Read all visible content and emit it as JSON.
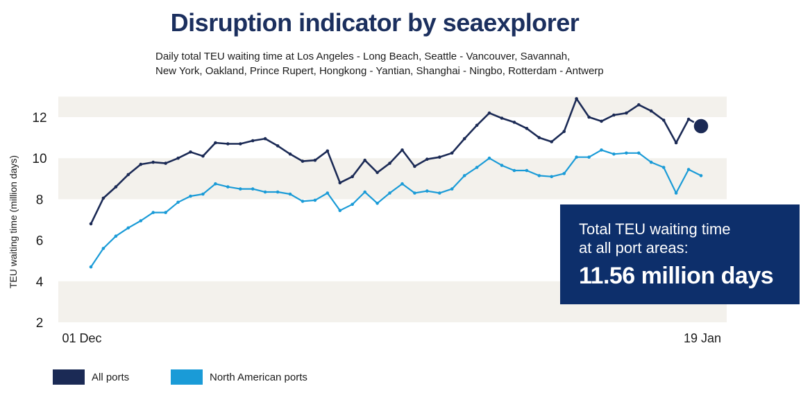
{
  "header": {
    "title": "Disruption indicator by seaexplorer",
    "subtitle_line1": "Daily total TEU waiting time at Los Angeles - Long Beach, Seattle - Vancouver, Savannah,",
    "subtitle_line2": "New York, Oakland, Prince Rupert, Hongkong - Yantian, Shanghai - Ningbo, Rotterdam - Antwerp"
  },
  "callout": {
    "line1": "Total TEU waiting time",
    "line2": "at all port areas:",
    "value": "11.56 million days"
  },
  "legend": {
    "all_ports": "All ports",
    "north_american": "North American ports"
  },
  "colors": {
    "all_ports": "#1b2a55",
    "north_american": "#1a9bd7",
    "callout_bg": "#0d2f6b",
    "band": "#f3f1ec",
    "title": "#1b2f5e"
  },
  "chart_data": {
    "type": "line",
    "title": "Disruption indicator by seaexplorer",
    "xlabel": "",
    "ylabel": "TEU waiting time (million days)",
    "ylim": [
      2,
      13
    ],
    "yticks": [
      2,
      4,
      6,
      8,
      10,
      12
    ],
    "x_tick_labels": [
      "01 Dec",
      "19 Jan"
    ],
    "grid": "alternating horizontal bands",
    "legend_position": "bottom-left",
    "x": [
      1,
      2,
      3,
      4,
      5,
      6,
      7,
      8,
      9,
      10,
      11,
      12,
      13,
      14,
      15,
      16,
      17,
      18,
      19,
      20,
      21,
      22,
      23,
      24,
      25,
      26,
      27,
      28,
      29,
      30,
      31,
      32,
      33,
      34,
      35,
      36,
      37,
      38,
      39,
      40,
      41,
      42,
      43,
      44,
      45,
      46,
      47,
      48,
      49,
      50
    ],
    "series": [
      {
        "name": "All ports",
        "values": [
          6.8,
          8.05,
          8.6,
          9.2,
          9.7,
          9.8,
          9.75,
          10.0,
          10.3,
          10.1,
          10.75,
          10.7,
          10.7,
          10.85,
          10.95,
          10.6,
          10.2,
          9.85,
          9.9,
          10.35,
          8.8,
          9.1,
          9.9,
          9.3,
          9.75,
          10.4,
          9.6,
          9.95,
          10.05,
          10.25,
          10.95,
          11.6,
          12.2,
          11.95,
          11.75,
          11.45,
          11.0,
          10.8,
          11.3,
          12.9,
          12.0,
          11.8,
          12.1,
          12.2,
          12.6,
          12.3,
          11.85,
          10.75,
          11.9,
          11.56
        ]
      },
      {
        "name": "North American ports",
        "values": [
          4.7,
          5.6,
          6.2,
          6.6,
          6.95,
          7.35,
          7.35,
          7.85,
          8.15,
          8.25,
          8.75,
          8.6,
          8.5,
          8.5,
          8.35,
          8.35,
          8.25,
          7.9,
          7.95,
          8.3,
          7.45,
          7.75,
          8.35,
          7.8,
          8.3,
          8.75,
          8.3,
          8.4,
          8.3,
          8.5,
          9.15,
          9.55,
          10.0,
          9.65,
          9.4,
          9.4,
          9.15,
          9.1,
          9.25,
          10.05,
          10.05,
          10.4,
          10.2,
          10.25,
          10.25,
          9.8,
          9.55,
          8.3,
          9.45,
          9.15
        ]
      }
    ]
  }
}
